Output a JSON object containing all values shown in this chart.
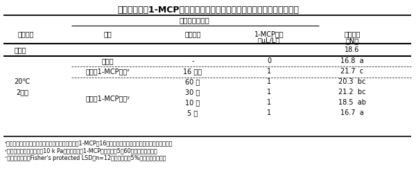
{
  "title": "表３．減圧下1-MCP処理がニホンナシ「新星」の日持ち性に及ぼす影響",
  "col_headers": {
    "main_group": "処　理　方　法",
    "storage": "貯蔵条件",
    "treatment": "処理",
    "time": "処理時間",
    "conc_line1": "1-MCP濃度",
    "conc_line2": "（μL/L）",
    "hard_line1": "果肉硬度",
    "hard_line2": "（N）"
  },
  "col_x": {
    "storage": 37,
    "treatment": 155,
    "time": 278,
    "concentration": 388,
    "hardness": 508
  },
  "rows": [
    {
      "storage": "処理前",
      "treatment": "",
      "time": "",
      "concentration": "",
      "hardness": "18.6",
      "bold_line_after": true
    },
    {
      "storage": "",
      "treatment": "無処理",
      "time": "-",
      "concentration": "0",
      "hardness": "16.8  a",
      "dashed_after": true
    },
    {
      "storage": "",
      "treatment": "常圧下1-MCP処理ᶻ",
      "time": "16 時間",
      "concentration": "1",
      "hardness": "21.7  c",
      "dashed_after": true
    },
    {
      "storage": "20℃",
      "treatment": "",
      "time": "60 分",
      "concentration": "1",
      "hardness": "20.3  bc",
      "dashed_after": false
    },
    {
      "storage": "2週間",
      "treatment": "減圧下1-MCP処理ʸ",
      "time": "30 分",
      "concentration": "1",
      "hardness": "21.2  bc",
      "dashed_after": false
    },
    {
      "storage": "",
      "treatment": "",
      "time": "10 分",
      "concentration": "1",
      "hardness": "18.5  ab",
      "dashed_after": false
    },
    {
      "storage": "",
      "treatment": "",
      "time": "5 分",
      "concentration": "1",
      "hardness": "16.7  a",
      "dashed_after": false
    }
  ],
  "footnotes": [
    "ᶻ収穫当日の果実を用い、気密性容器内で、常圧で1-MCPを16時間暴露処理（農薬登録に準じた処理方法）",
    "ʸ収穫当日の果実を用い、10 k Paまで減圧後、1-MCPを注入し、5～60分暴露処理後開放",
    "ᵛ異なる記号は、Fisher's protected LSD（n=12）において、5%水準で有意差有り"
  ],
  "bg_color": "#ffffff",
  "text_color": "#000000",
  "font_size": 7.0,
  "title_font_size": 9.0,
  "footnote_font_size": 5.8
}
